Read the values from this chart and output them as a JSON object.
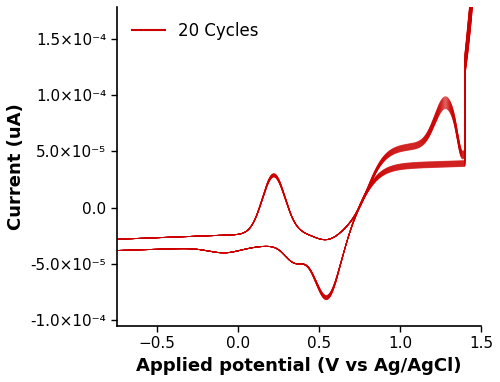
{
  "n_cycles": 20,
  "x_lim": [
    -0.75,
    1.5
  ],
  "y_lim": [
    -0.000105,
    0.000178
  ],
  "x_ticks": [
    -0.5,
    0.0,
    0.5,
    1.0,
    1.5
  ],
  "y_ticks": [
    -0.0001,
    -5e-05,
    0.0,
    5e-05,
    0.0001,
    0.00015
  ],
  "xlabel": "Applied potential (V vs Ag/AgCl)",
  "ylabel": "Current (uA)",
  "legend_label": "20 Cycles",
  "line_color": "#cc0000",
  "line_alpha": 0.55,
  "line_width": 0.65,
  "background_color": "#ffffff",
  "xlabel_fontsize": 13,
  "ylabel_fontsize": 13,
  "tick_fontsize": 11,
  "legend_fontsize": 12
}
